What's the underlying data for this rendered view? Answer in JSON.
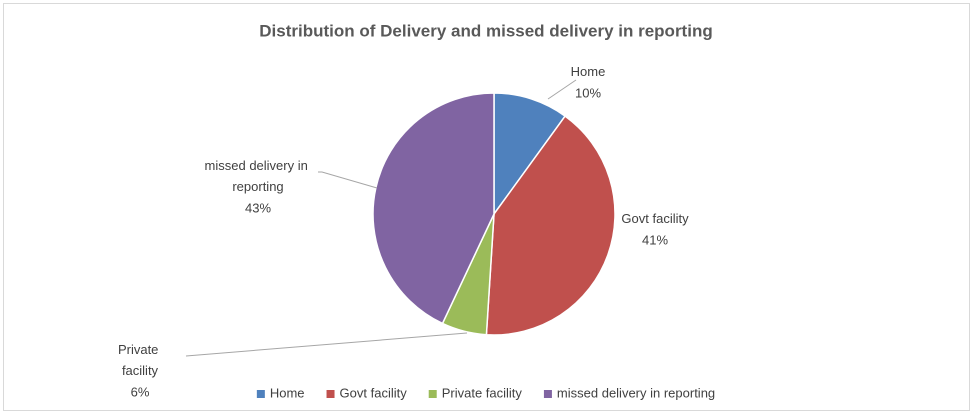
{
  "chart_data": {
    "type": "pie",
    "title": "Distribution of Delivery and missed delivery in reporting",
    "categories": [
      "Home",
      "Govt facility",
      "Private facility",
      "missed delivery in reporting"
    ],
    "values": [
      10,
      41,
      6,
      43
    ],
    "value_labels": [
      "10%",
      "41%",
      "6%",
      "43%"
    ],
    "colors": [
      "#4f81bd",
      "#c0504d",
      "#9bbb59",
      "#8064a2"
    ],
    "legend": "bottom"
  }
}
